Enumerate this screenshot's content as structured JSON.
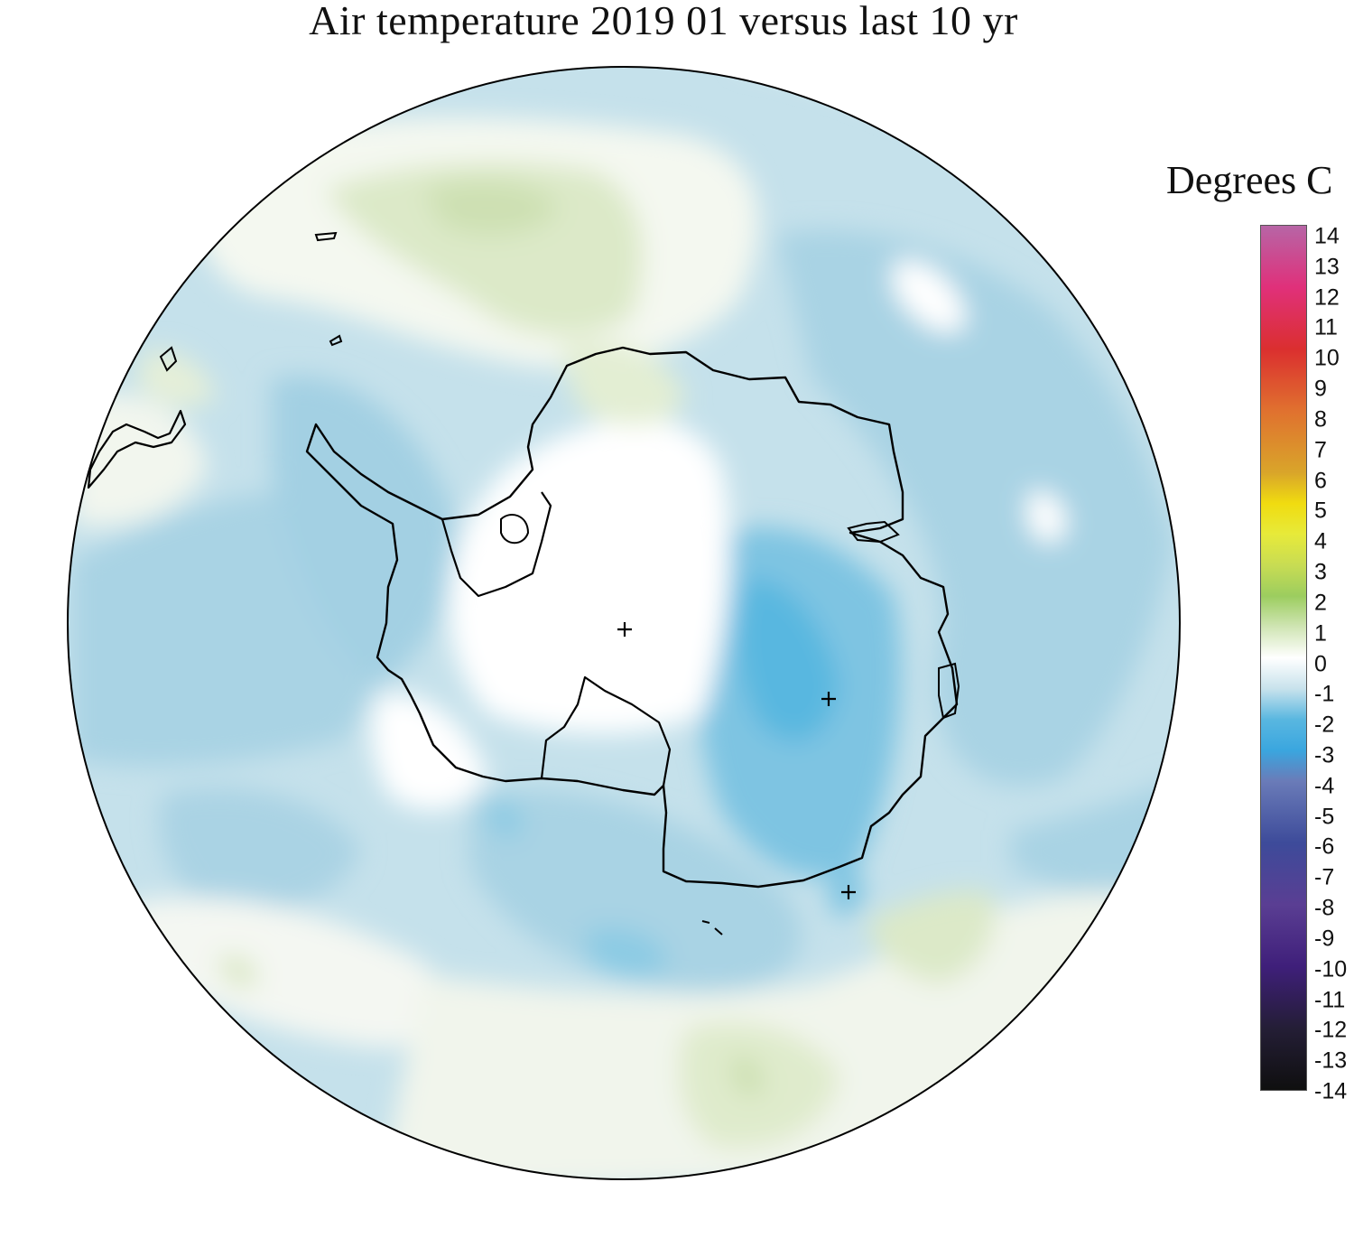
{
  "title": "Air temperature 2019 01 versus last 10 yr",
  "colorbar": {
    "label": "Degrees C",
    "ticks": [
      "14",
      "13",
      "12",
      "11",
      "10",
      "9",
      "8",
      "7",
      "6",
      "5",
      "4",
      "3",
      "2",
      "1",
      "0",
      "-1",
      "-2",
      "-3",
      "-4",
      "-5",
      "-6",
      "-7",
      "-8",
      "-9",
      "-10",
      "-11",
      "-12",
      "-13",
      "-14"
    ],
    "colors": {
      "14": "#b765a6",
      "12": "#e0307a",
      "10": "#db2f2f",
      "8": "#e0712f",
      "6": "#d9a52a",
      "5": "#f0dc10",
      "4": "#e7ea3a",
      "3": "#c8dc53",
      "2": "#9ccd5f",
      "1": "#d0e5b4",
      "0": "#ffffff",
      "-1": "#c8e2ec",
      "-2": "#59b7e0",
      "-3": "#3aa6df",
      "-4": "#6a7bb8",
      "-6": "#3d4b9a",
      "-8": "#5a3e93",
      "-10": "#3f1f7a",
      "-12": "#241e36",
      "-14": "#0f0f0f"
    }
  },
  "map": {
    "projection": "south polar stereographic",
    "region": "Antarctica",
    "markers": [
      "+",
      "+",
      "+"
    ]
  }
}
